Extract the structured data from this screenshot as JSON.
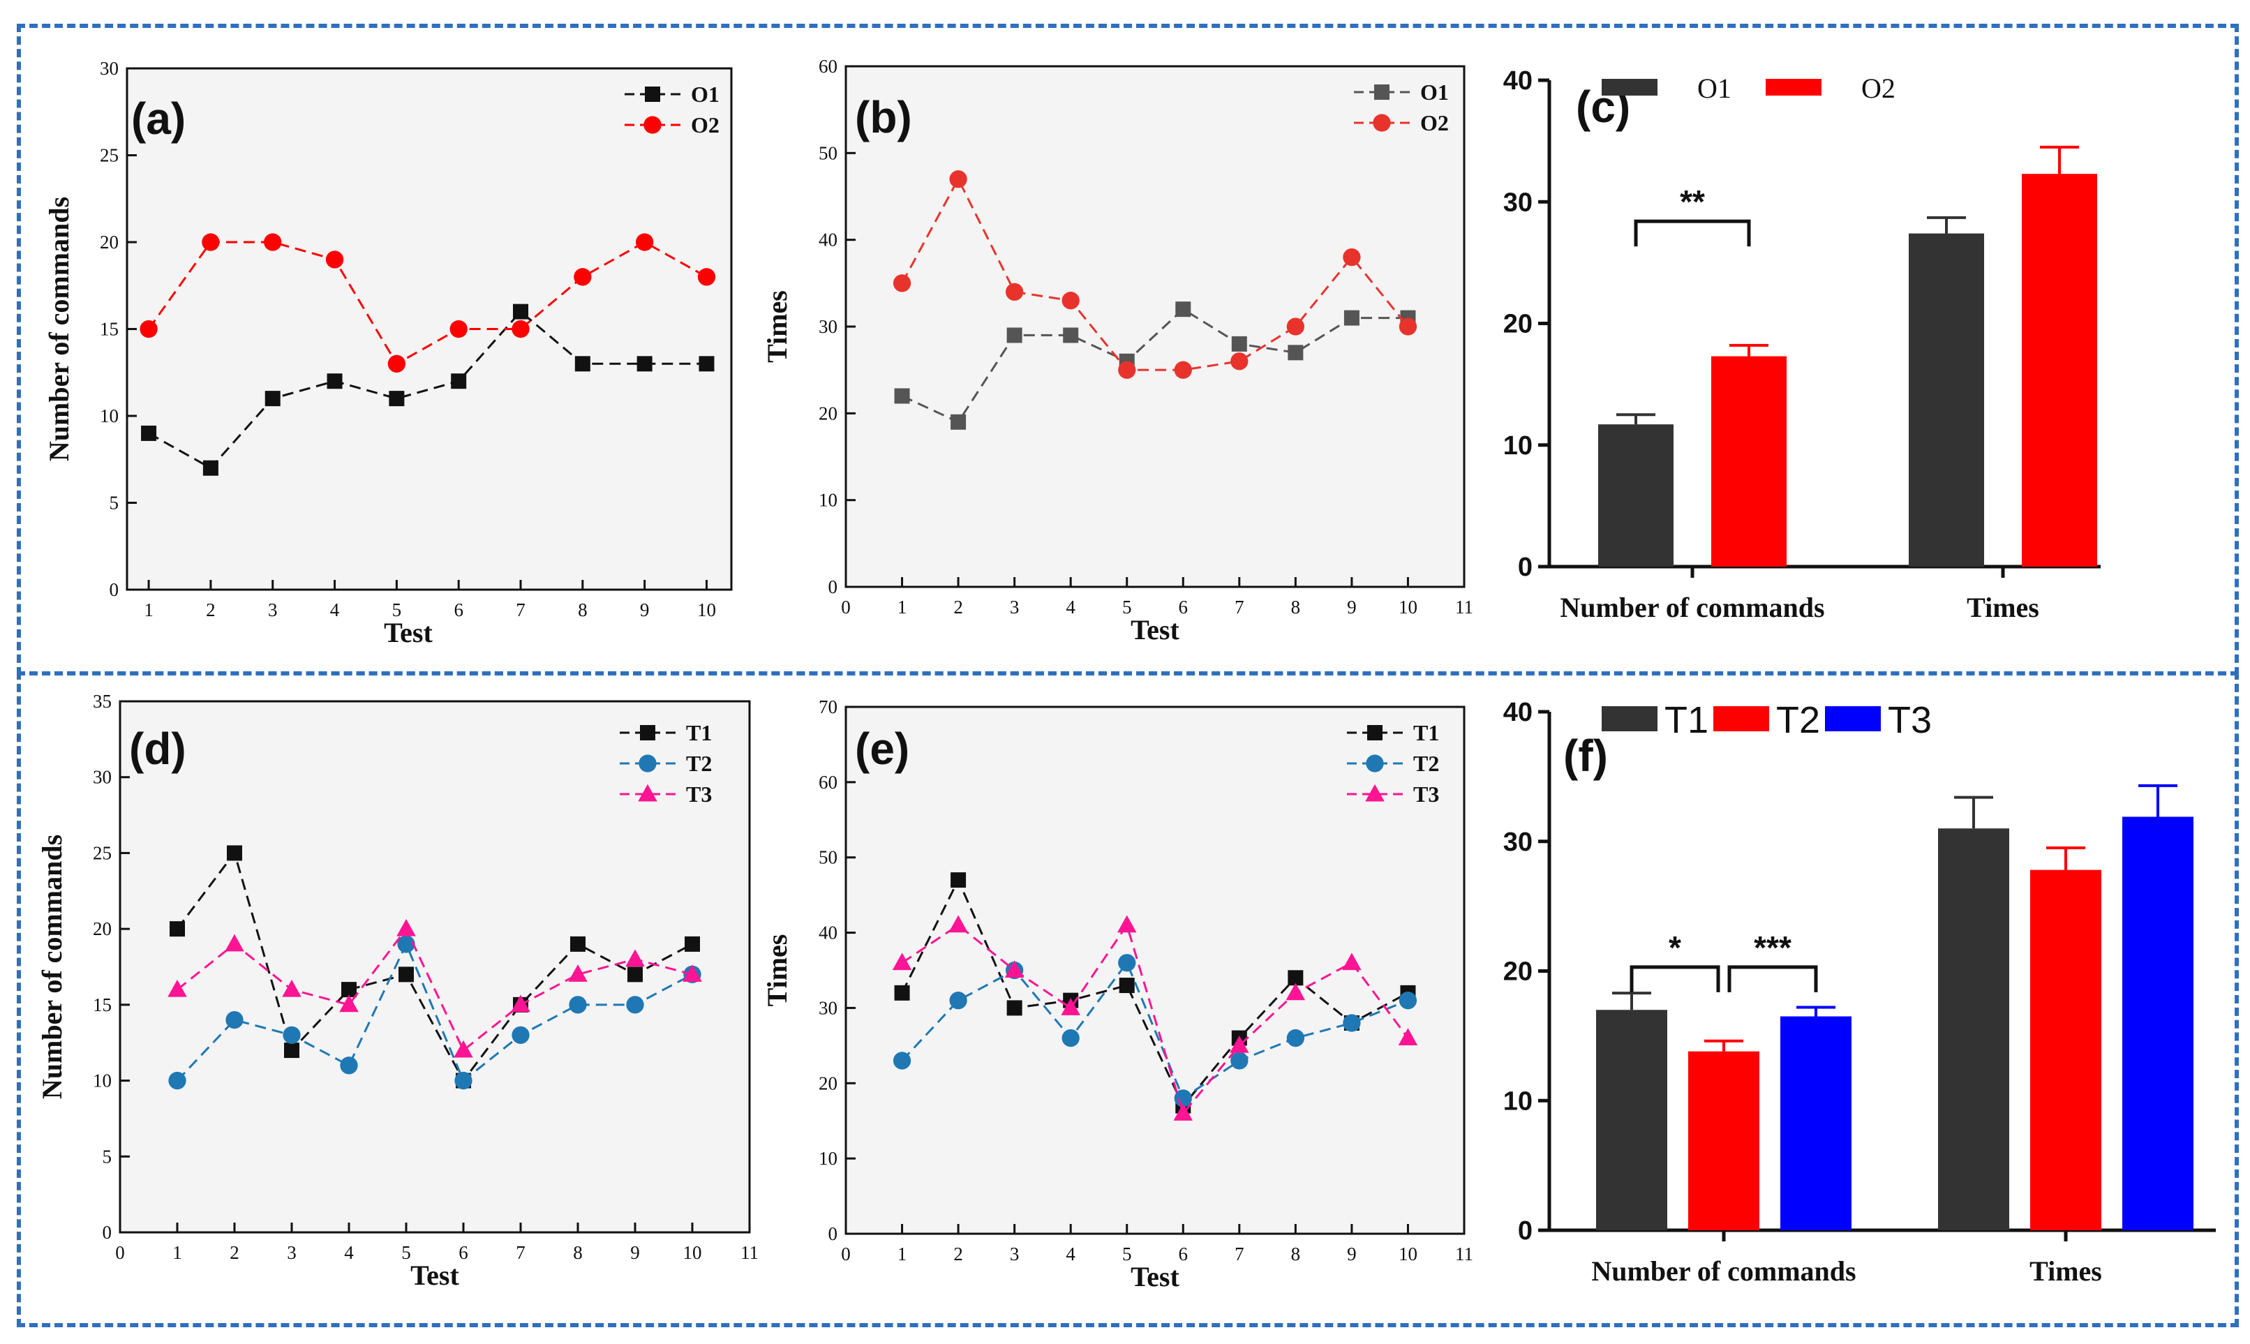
{
  "colors": {
    "frame": "#2f6fbf",
    "black": "#111111",
    "darkgray": "#333333",
    "gray": "#555555",
    "red": "#ff0000",
    "redline": "#e8332c",
    "blue": "#0000ff",
    "steelblue": "#1f78b4",
    "pink": "#ff1493",
    "plotbg": "#f4f4f4"
  },
  "chart_data": [
    {
      "panel": "(a)",
      "type": "line",
      "xlabel": "Test",
      "ylabel": "Number of commands",
      "x": [
        1,
        2,
        3,
        4,
        5,
        6,
        7,
        8,
        9,
        10
      ],
      "xticks": [
        "1",
        "2",
        "3",
        "4",
        "5",
        "6",
        "7",
        "8",
        "9",
        "10"
      ],
      "ylim": [
        0,
        30
      ],
      "yticks": [
        "0",
        "5",
        "10",
        "15",
        "20",
        "25",
        "30"
      ],
      "series": [
        {
          "name": "O1",
          "marker": "square",
          "color": "black",
          "values": [
            9,
            7,
            11,
            12,
            11,
            12,
            16,
            13,
            13,
            13
          ]
        },
        {
          "name": "O2",
          "marker": "circle",
          "color": "red",
          "values": [
            15,
            20,
            20,
            19,
            13,
            15,
            15,
            18,
            20,
            18
          ]
        }
      ]
    },
    {
      "panel": "(b)",
      "type": "line",
      "xlabel": "Test",
      "ylabel": "Times",
      "x": [
        1,
        2,
        3,
        4,
        5,
        6,
        7,
        8,
        9,
        10
      ],
      "xticks": [
        "0",
        "1",
        "2",
        "3",
        "4",
        "5",
        "6",
        "7",
        "8",
        "9",
        "10",
        "11"
      ],
      "ylim": [
        0,
        60
      ],
      "yticks": [
        "0",
        "10",
        "20",
        "30",
        "40",
        "50",
        "60"
      ],
      "series": [
        {
          "name": "O1",
          "marker": "square",
          "color": "gray",
          "values": [
            22,
            19,
            29,
            29,
            26,
            32,
            28,
            27,
            31,
            31
          ]
        },
        {
          "name": "O2",
          "marker": "circle",
          "color": "redline",
          "values": [
            35,
            47,
            34,
            33,
            25,
            25,
            26,
            30,
            38,
            30
          ]
        }
      ]
    },
    {
      "panel": "(c)",
      "type": "bar",
      "categories": [
        "Number of commands",
        "Times"
      ],
      "ylim": [
        0,
        40
      ],
      "yticks": [
        "0",
        "10",
        "20",
        "30",
        "40"
      ],
      "series": [
        {
          "name": "O1",
          "color": "darkgray",
          "values": [
            11.7,
            27.4
          ],
          "errors": [
            0.8,
            1.3
          ]
        },
        {
          "name": "O2",
          "color": "red",
          "values": [
            17.3,
            32.3
          ],
          "errors": [
            0.9,
            2.2
          ]
        }
      ],
      "annotations": [
        "**"
      ]
    },
    {
      "panel": "(d)",
      "type": "line",
      "xlabel": "Test",
      "ylabel": "Number of commands",
      "x": [
        1,
        2,
        3,
        4,
        5,
        6,
        7,
        8,
        9,
        10
      ],
      "xticks": [
        "0",
        "1",
        "2",
        "3",
        "4",
        "5",
        "6",
        "7",
        "8",
        "9",
        "10",
        "11"
      ],
      "ylim": [
        0,
        35
      ],
      "yticks": [
        "0",
        "5",
        "10",
        "15",
        "20",
        "25",
        "30",
        "35"
      ],
      "series": [
        {
          "name": "T1",
          "marker": "square",
          "color": "black",
          "values": [
            20,
            25,
            12,
            16,
            17,
            10,
            15,
            19,
            17,
            19
          ]
        },
        {
          "name": "T2",
          "marker": "circle",
          "color": "steelblue",
          "values": [
            10,
            14,
            13,
            11,
            19,
            10,
            13,
            15,
            15,
            17
          ]
        },
        {
          "name": "T3",
          "marker": "triangle",
          "color": "pink",
          "values": [
            16,
            19,
            16,
            15,
            20,
            12,
            15,
            17,
            18,
            17
          ]
        }
      ]
    },
    {
      "panel": "(e)",
      "type": "line",
      "xlabel": "Test",
      "ylabel": "Times",
      "x": [
        1,
        2,
        3,
        4,
        5,
        6,
        7,
        8,
        9,
        10
      ],
      "xticks": [
        "0",
        "1",
        "2",
        "3",
        "4",
        "5",
        "6",
        "7",
        "8",
        "9",
        "10",
        "11"
      ],
      "ylim": [
        0,
        70
      ],
      "yticks": [
        "0",
        "10",
        "20",
        "30",
        "40",
        "50",
        "60",
        "70"
      ],
      "series": [
        {
          "name": "T1",
          "marker": "square",
          "color": "black",
          "values": [
            32,
            47,
            30,
            31,
            33,
            17,
            26,
            34,
            28,
            32
          ]
        },
        {
          "name": "T2",
          "marker": "circle",
          "color": "steelblue",
          "values": [
            23,
            31,
            35,
            26,
            36,
            18,
            23,
            26,
            28,
            31
          ]
        },
        {
          "name": "T3",
          "marker": "triangle",
          "color": "pink",
          "values": [
            36,
            41,
            35,
            30,
            41,
            16,
            25,
            32,
            36,
            26
          ]
        }
      ]
    },
    {
      "panel": "(f)",
      "type": "bar",
      "categories": [
        "Number of commands",
        "Times"
      ],
      "ylim": [
        0,
        40
      ],
      "yticks": [
        "0",
        "10",
        "20",
        "30",
        "40"
      ],
      "series": [
        {
          "name": "T1",
          "color": "darkgray",
          "values": [
            17.0,
            31.0
          ],
          "errors": [
            1.3,
            2.4
          ]
        },
        {
          "name": "T2",
          "color": "red",
          "values": [
            13.8,
            27.8
          ],
          "errors": [
            0.8,
            1.7
          ]
        },
        {
          "name": "T3",
          "color": "blue",
          "values": [
            16.5,
            31.9
          ],
          "errors": [
            0.7,
            2.4
          ]
        }
      ],
      "annotations": [
        "*",
        "***"
      ]
    }
  ]
}
